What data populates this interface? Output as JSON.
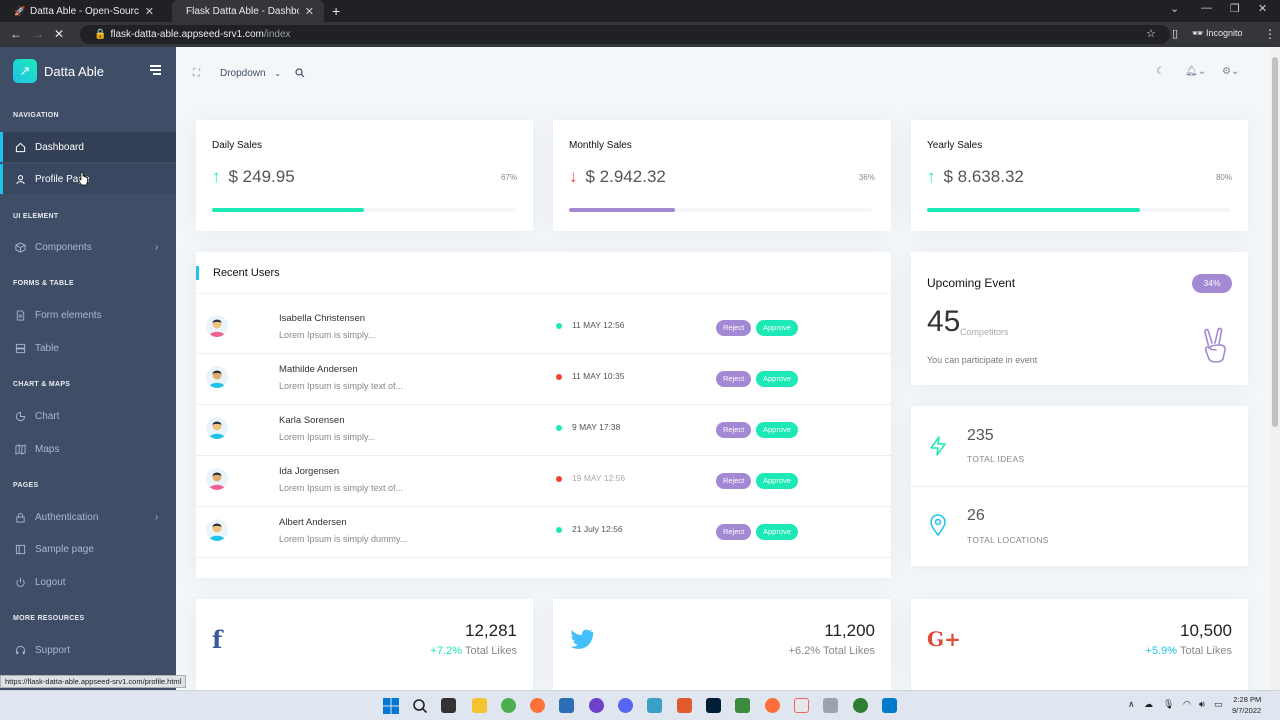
{
  "browser": {
    "tabs": [
      {
        "title": "Datta Able - Open-Source Flask D"
      },
      {
        "title": "Flask Datta Able - Dashboard | A"
      }
    ],
    "url_host": "flask-datta-able.appseed-srv1.com",
    "url_path": "/index",
    "profile_label": "Incognito",
    "status_url": "https://flask-datta-able.appseed-srv1.com/profile.html"
  },
  "sidebar": {
    "brand": "Datta Able",
    "sections": {
      "navigation": "NAVIGATION",
      "ui_element": "UI ELEMENT",
      "forms_table": "FORMS & TABLE",
      "chart_maps": "CHART & MAPS",
      "pages": "PAGES",
      "more": "MORE RESOURCES"
    },
    "items": {
      "dashboard": "Dashboard",
      "profile": "Profile Page",
      "components": "Components",
      "form_elements": "Form elements",
      "table": "Table",
      "chart": "Chart",
      "maps": "Maps",
      "authentication": "Authentication",
      "sample_page": "Sample page",
      "logout": "Logout",
      "support": "Support"
    }
  },
  "header": {
    "dropdown_label": "Dropdown"
  },
  "sales": [
    {
      "title": "Daily Sales",
      "value": "$ 249.95",
      "percent": "67%",
      "progress": 0.5,
      "trend": "up",
      "color": "#1de9b6"
    },
    {
      "title": "Monthly Sales",
      "value": "$ 2.942.32",
      "percent": "36%",
      "progress": 0.35,
      "trend": "down",
      "color": "#a389d4"
    },
    {
      "title": "Yearly Sales",
      "value": "$ 8.638.32",
      "percent": "80%",
      "progress": 0.7,
      "trend": "up",
      "color": "#1de9b6"
    }
  ],
  "recent_users": {
    "title": "Recent Users",
    "reject_label": "Reject",
    "approve_label": "Approve",
    "rows": [
      {
        "name": "Isabella Christensen",
        "desc": "Lorem Ipsum is simply...",
        "date": "11 MAY 12:56",
        "status": "green"
      },
      {
        "name": "Mathilde Andersen",
        "desc": "Lorem Ipsum is simply text of...",
        "date": "11 MAY 10:35",
        "status": "red"
      },
      {
        "name": "Karla Sorensen",
        "desc": "Lorem Ipsum is simply...",
        "date": "9 MAY 17:38",
        "status": "green"
      },
      {
        "name": "Ida Jorgensen",
        "desc": "Lorem Ipsum is simply text of...",
        "date": "19 MAY 12:56",
        "status": "red"
      },
      {
        "name": "Albert Andersen",
        "desc": "Lorem Ipsum is simply dummy...",
        "date": "21 July 12:56",
        "status": "green"
      }
    ]
  },
  "upcoming_event": {
    "title": "Upcoming Event",
    "badge": "34%",
    "number": "45",
    "number_label": "Competitors",
    "subtitle": "You can participate in event"
  },
  "stats": [
    {
      "number": "235",
      "label": "TOTAL IDEAS",
      "icon": "zap-icon"
    },
    {
      "number": "26",
      "label": "TOTAL LOCATIONS",
      "icon": "map-pin-icon"
    }
  ],
  "social": [
    {
      "icon": "facebook-icon",
      "glyph": "f",
      "color": "#3b5998",
      "count": "12,281",
      "change": "+7.2%",
      "change_color": "#1de9b6",
      "label": "Total Likes"
    },
    {
      "icon": "twitter-icon",
      "glyph": "🐦",
      "color": "#42c0fb",
      "count": "11,200",
      "change": "+6.2%",
      "change_color": "#a389d4",
      "label": "Total Likes"
    },
    {
      "icon": "google-plus-icon",
      "glyph": "G+",
      "color": "#dd4b39",
      "count": "10,500",
      "change": "+5.9%",
      "change_color": "#1dc4e9",
      "label": "Total Likes"
    }
  ],
  "taskbar": {
    "time": "2:28 PM",
    "date": "9/7/2022"
  }
}
